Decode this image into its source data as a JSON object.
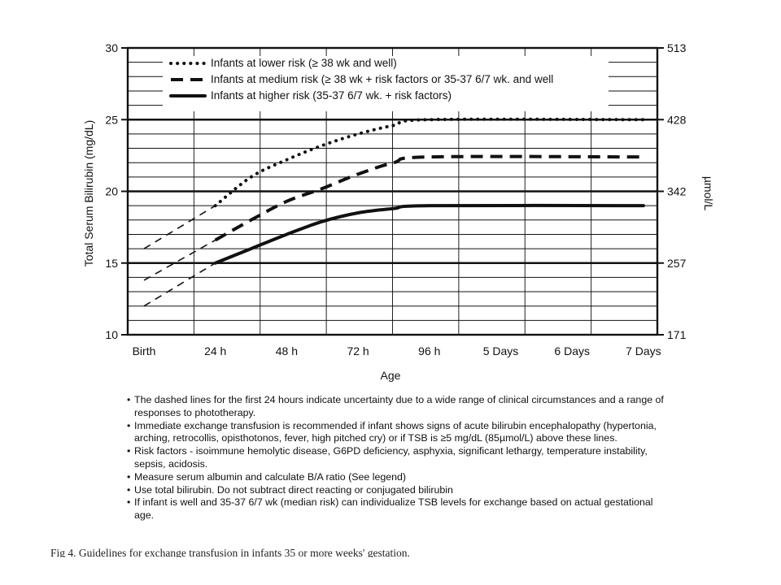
{
  "chart_data": {
    "type": "line",
    "xlabel": "Age",
    "ylabel": "Total Serum Bilirubin (mg/dL)",
    "ylabel_right": "µmol/L",
    "ylim": [
      10,
      30
    ],
    "x_categories": [
      "Birth",
      "24 h",
      "48 h",
      "72 h",
      "96 h",
      "5 Days",
      "6 Days",
      "7 Days"
    ],
    "y_ticks_left": [
      "10",
      "15",
      "20",
      "25",
      "30"
    ],
    "y_ticks_right": [
      "171",
      "257",
      "342",
      "428",
      "513"
    ],
    "grid": true,
    "legend_position": "top-left",
    "series": [
      {
        "name": "Infants at lower risk (≥ 38 wk and well)",
        "style": "dotted",
        "uncertain_segment": {
          "x": [
            0,
            1
          ],
          "y": [
            16,
            19
          ]
        },
        "x": [
          1,
          1.5,
          2,
          2.5,
          3,
          3.5,
          4,
          7
        ],
        "y": [
          19,
          21,
          22.2,
          23.2,
          24,
          24.6,
          25,
          25
        ]
      },
      {
        "name": "Infants at medium risk (≥ 38 wk + risk factors or 35-37 6/7 wk. and well",
        "style": "dashed",
        "uncertain_segment": {
          "x": [
            0,
            1
          ],
          "y": [
            13.8,
            16.6
          ]
        },
        "x": [
          1,
          1.5,
          2,
          2.5,
          3,
          3.5,
          4,
          7
        ],
        "y": [
          16.6,
          18,
          19.3,
          20.2,
          21.2,
          22,
          22.4,
          22.4
        ]
      },
      {
        "name": "Infants at higher risk (35-37 6/7 wk. + risk factors)",
        "style": "solid",
        "uncertain_segment": {
          "x": [
            0,
            1
          ],
          "y": [
            12,
            15
          ]
        },
        "x": [
          1,
          1.5,
          2,
          2.5,
          3,
          3.5,
          4,
          7
        ],
        "y": [
          15,
          16,
          17,
          17.9,
          18.5,
          18.8,
          19,
          19
        ]
      }
    ]
  },
  "notes": [
    "The dashed lines for the first 24 hours indicate uncertainty due to a wide range of clinical circumstances and a range of responses to phototherapy.",
    "Immediate exchange transfusion is recommended if infant shows signs of acute bilirubin encephalopathy (hypertonia, arching, retrocollis, opisthotonos, fever, high pitched cry) or if TSB is ≥5 mg/dL (85µmol/L) above these lines.",
    "Risk factors - isoimmune hemolytic disease, G6PD deficiency, asphyxia, significant lethargy, temperature instability, sepsis, acidosis.",
    "Measure serum albumin and calculate B/A ratio (See legend)",
    "Use total bilirubin.  Do not subtract direct reacting or conjugated bilirubin",
    "If infant is well and 35-37 6/7 wk (median risk) can individualize TSB levels for exchange based on actual gestational age."
  ],
  "caption": "Fig 4. Guidelines for exchange transfusion in infants 35 or more weeks' gestation."
}
